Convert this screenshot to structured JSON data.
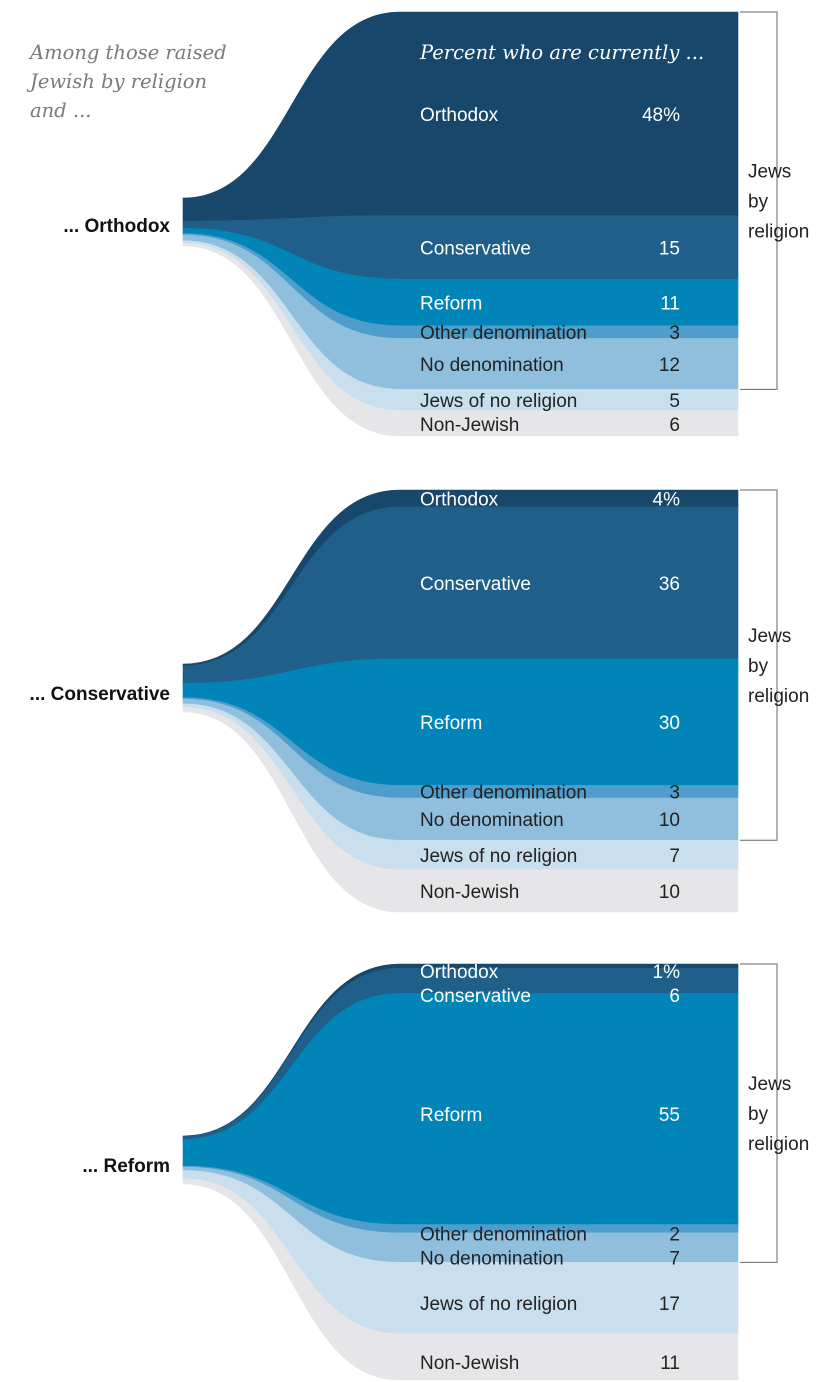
{
  "intro_note": "Among those raised Jewish by religion and ...",
  "percent_header": "Percent who are currently ...",
  "bracket_label": [
    "Jews",
    "by",
    "religion"
  ],
  "colors": {
    "Orthodox": "#17476b",
    "Conservative": "#1f5f8a",
    "Reform": "#0184b8",
    "Other denomination": "#4e9dcb",
    "No denomination": "#8fbfdd",
    "Jews of no religion": "#c9dfee",
    "Non-Jewish": "#e6e6e8"
  },
  "chart_data": [
    {
      "type": "sankey",
      "source": "... Orthodox",
      "categories": [
        "Orthodox",
        "Conservative",
        "Reform",
        "Other denomination",
        "No denomination",
        "Jews of no religion",
        "Non-Jewish"
      ],
      "values": [
        48,
        15,
        11,
        3,
        12,
        5,
        6
      ],
      "value_labels": [
        "48%",
        "15",
        "11",
        "3",
        "12",
        "5",
        "6"
      ],
      "bracket_covers": [
        "Orthodox",
        "Conservative",
        "Reform",
        "Other denomination",
        "No denomination"
      ]
    },
    {
      "type": "sankey",
      "source": "... Conservative",
      "categories": [
        "Orthodox",
        "Conservative",
        "Reform",
        "Other denomination",
        "No denomination",
        "Jews of no religion",
        "Non-Jewish"
      ],
      "values": [
        4,
        36,
        30,
        3,
        10,
        7,
        10
      ],
      "value_labels": [
        "4%",
        "36",
        "30",
        "3",
        "10",
        "7",
        "10"
      ],
      "bracket_covers": [
        "Orthodox",
        "Conservative",
        "Reform",
        "Other denomination",
        "No denomination"
      ]
    },
    {
      "type": "sankey",
      "source": "... Reform",
      "categories": [
        "Orthodox",
        "Conservative",
        "Reform",
        "Other denomination",
        "No denomination",
        "Jews of no religion",
        "Non-Jewish"
      ],
      "values": [
        1,
        6,
        55,
        2,
        7,
        17,
        11
      ],
      "value_labels": [
        "1%",
        "6",
        "55",
        "2",
        "7",
        "17",
        "11"
      ],
      "bracket_covers": [
        "Orthodox",
        "Conservative",
        "Reform",
        "Other denomination",
        "No denomination"
      ]
    }
  ]
}
